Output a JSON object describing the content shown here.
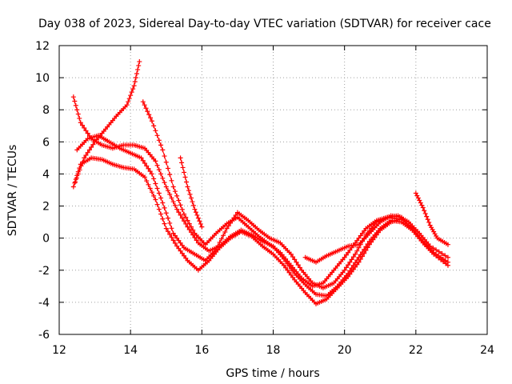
{
  "chart_data": {
    "type": "scatter",
    "title": "Day 038 of 2023, Sidereal Day-to-day VTEC variation (SDTVAR) for receiver cace",
    "xlabel": "GPS time / hours",
    "ylabel": "SDTVAR / TECUs",
    "xlim": [
      12,
      24
    ],
    "ylim": [
      -6,
      12
    ],
    "xticks": [
      12,
      14,
      16,
      18,
      20,
      22,
      24
    ],
    "yticks": [
      -6,
      -4,
      -2,
      0,
      2,
      4,
      6,
      8,
      10,
      12
    ],
    "grid": true,
    "marker": "plus",
    "color": "#ff0000",
    "series": [
      {
        "name": "track-1",
        "x": [
          12.45,
          12.7,
          13.0,
          13.3,
          13.6,
          13.9,
          14.1,
          14.25
        ],
        "y": [
          3.5,
          5.0,
          6.0,
          6.8,
          7.6,
          8.3,
          9.5,
          11.0
        ]
      },
      {
        "name": "track-2",
        "x": [
          12.4,
          12.6,
          12.9,
          13.2,
          13.5,
          13.8,
          14.1,
          14.4,
          14.7,
          15.0,
          15.3,
          15.6,
          15.9,
          16.2,
          16.5,
          16.8,
          17.1,
          17.4,
          17.7,
          18.0,
          18.3,
          18.6,
          18.9,
          19.2,
          19.5,
          19.8,
          20.1,
          20.4,
          20.7,
          21.0,
          21.3,
          21.6,
          21.9,
          22.2,
          22.5,
          22.9
        ],
        "y": [
          8.8,
          7.2,
          6.2,
          5.8,
          5.6,
          5.8,
          5.8,
          5.6,
          4.8,
          3.2,
          1.8,
          0.7,
          -0.3,
          -0.8,
          -0.5,
          0.1,
          0.5,
          0.2,
          -0.2,
          -0.5,
          -1.3,
          -2.2,
          -2.9,
          -3.5,
          -3.6,
          -3.0,
          -2.2,
          -1.2,
          -0.2,
          0.6,
          1.1,
          1.0,
          0.5,
          -0.3,
          -1.0,
          -1.7
        ]
      },
      {
        "name": "track-3",
        "x": [
          12.4,
          12.6,
          12.9,
          13.2,
          13.5,
          13.8,
          14.1,
          14.4,
          14.7,
          15.0,
          15.3,
          15.6,
          15.9,
          16.2,
          16.5,
          16.8,
          17.1,
          17.4,
          17.7,
          18.0,
          18.3,
          18.6,
          18.9,
          19.2,
          19.5,
          19.8,
          20.1,
          20.4,
          20.7,
          21.0,
          21.3,
          21.6,
          21.9,
          22.2,
          22.5,
          22.9
        ],
        "y": [
          3.2,
          4.6,
          5.0,
          4.9,
          4.6,
          4.4,
          4.3,
          3.8,
          2.4,
          0.6,
          -0.5,
          -1.4,
          -2.0,
          -1.4,
          -0.6,
          0.0,
          0.4,
          0.1,
          -0.5,
          -1.0,
          -1.7,
          -2.6,
          -3.4,
          -4.1,
          -3.8,
          -3.1,
          -2.4,
          -1.5,
          -0.4,
          0.5,
          1.0,
          1.2,
          0.6,
          -0.2,
          -0.9,
          -1.5
        ]
      },
      {
        "name": "track-4",
        "x": [
          12.5,
          12.8,
          13.1,
          13.4,
          13.7,
          14.0,
          14.3,
          14.6,
          14.9,
          15.2,
          15.5,
          15.8,
          16.1,
          16.4,
          16.7,
          17.0,
          17.3,
          17.6,
          17.9,
          18.2,
          18.5,
          18.8,
          19.1,
          19.4,
          19.7,
          20.0,
          20.3,
          20.6,
          20.9,
          21.2,
          21.5,
          21.8,
          22.1,
          22.4,
          22.9
        ],
        "y": [
          5.5,
          6.2,
          6.4,
          6.0,
          5.6,
          5.3,
          5.0,
          4.0,
          2.2,
          0.3,
          -0.6,
          -1.0,
          -1.4,
          -0.7,
          0.6,
          1.6,
          1.1,
          0.5,
          0.0,
          -0.3,
          -1.0,
          -2.0,
          -2.8,
          -3.1,
          -2.8,
          -2.0,
          -1.0,
          0.2,
          1.0,
          1.3,
          1.4,
          1.0,
          0.3,
          -0.5,
          -1.2
        ]
      },
      {
        "name": "track-5",
        "x": [
          14.35,
          14.6,
          14.9,
          15.2,
          15.5,
          15.8,
          16.1,
          16.4,
          16.7,
          17.0,
          17.3,
          17.6,
          17.9,
          18.2,
          18.5,
          18.8,
          19.1,
          19.4,
          19.7,
          20.0,
          20.3,
          20.6,
          20.9,
          21.2,
          21.5
        ],
        "y": [
          8.5,
          7.3,
          5.5,
          3.2,
          1.5,
          0.3,
          -0.4,
          0.3,
          0.9,
          1.3,
          0.7,
          0.1,
          -0.4,
          -0.9,
          -1.7,
          -2.5,
          -3.0,
          -2.8,
          -2.0,
          -1.2,
          -0.3,
          0.6,
          1.1,
          1.3,
          1.2
        ]
      },
      {
        "name": "track-6",
        "x": [
          15.4,
          15.6,
          15.8,
          16.0
        ],
        "y": [
          5.0,
          3.2,
          1.8,
          0.7
        ]
      },
      {
        "name": "track-7",
        "x": [
          18.9,
          19.2,
          19.5,
          19.8,
          20.1,
          20.4,
          20.7,
          21.0,
          21.3,
          21.6
        ],
        "y": [
          -1.2,
          -1.5,
          -1.1,
          -0.8,
          -0.5,
          -0.4,
          0.3,
          1.0,
          1.4,
          1.3
        ]
      },
      {
        "name": "track-8",
        "x": [
          22.0,
          22.2,
          22.4,
          22.6,
          22.9
        ],
        "y": [
          2.8,
          1.9,
          0.8,
          0.0,
          -0.4
        ]
      }
    ]
  }
}
